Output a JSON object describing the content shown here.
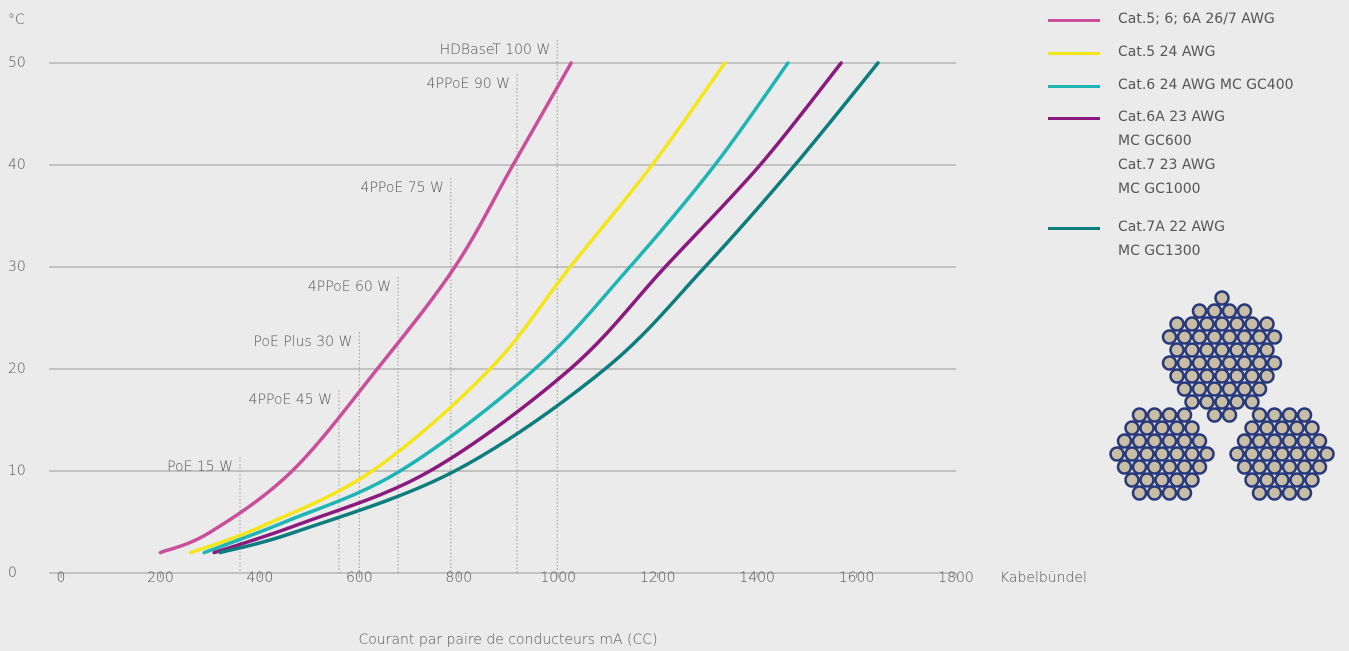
{
  "chart_data": {
    "type": "line",
    "y_label": "°C",
    "x_label": "Courant par paire de conducteurs mA (CC)",
    "x_end_label": "Kabelbündel",
    "xlim": [
      0,
      1800
    ],
    "xticks": [
      0,
      200,
      400,
      600,
      800,
      1000,
      1200,
      1400,
      1600,
      1800
    ],
    "ylim": [
      0,
      50
    ],
    "yticks": [
      0,
      10,
      20,
      30,
      40,
      50
    ],
    "grid": true,
    "legend_position": "right",
    "series": [
      {
        "name": "Cat.5; 6; 6A 26/7 AWG",
        "color": "#c94f9a",
        "x": [
          200,
          300,
          465,
          636,
          792,
          909,
          1026
        ],
        "values": [
          2,
          4,
          10,
          20,
          30,
          40,
          50
        ]
      },
      {
        "name": "Cat.5 24 AWG",
        "color": "#f5e61a",
        "x": [
          261,
          400,
          626,
          863,
          1024,
          1189,
          1335
        ],
        "values": [
          2,
          4.5,
          10,
          20,
          30,
          40,
          50
        ]
      },
      {
        "name": "Cat.6 24 AWG MC GC400",
        "color": "#1fb5b5",
        "x": [
          288,
          450,
          682,
          953,
          1144,
          1315,
          1462
        ],
        "values": [
          2,
          5,
          10,
          20,
          30,
          40,
          50
        ]
      },
      {
        "name": "Cat.6A 23 AWG\nMC GC600\nCat.7 23 AWG\nMC GC1000",
        "color": "#8b1a7e",
        "x": [
          308,
          480,
          742,
          1024,
          1215,
          1406,
          1569
        ],
        "values": [
          2,
          4.8,
          10,
          20,
          30,
          40,
          50
        ]
      },
      {
        "name": "Cat.7A 22 AWG\nMC GC1300",
        "color": "#0e7d7d",
        "x": [
          320,
          470,
          792,
          1094,
          1295,
          1476,
          1643
        ],
        "values": [
          2,
          4,
          10,
          20,
          30,
          40,
          50
        ]
      }
    ],
    "annotations": [
      {
        "label": "PoE 15 W",
        "x": 360
      },
      {
        "label": "4PPoE 45 W",
        "x": 559
      },
      {
        "label": "PoE Plus 30 W",
        "x": 600
      },
      {
        "label": "4PPoE 60 W",
        "x": 678
      },
      {
        "label": "4PPoE 75 W",
        "x": 784
      },
      {
        "label": "4PPoE 90 W",
        "x": 917
      },
      {
        "label": "HDBaseT 100 W",
        "x": 998
      }
    ]
  }
}
